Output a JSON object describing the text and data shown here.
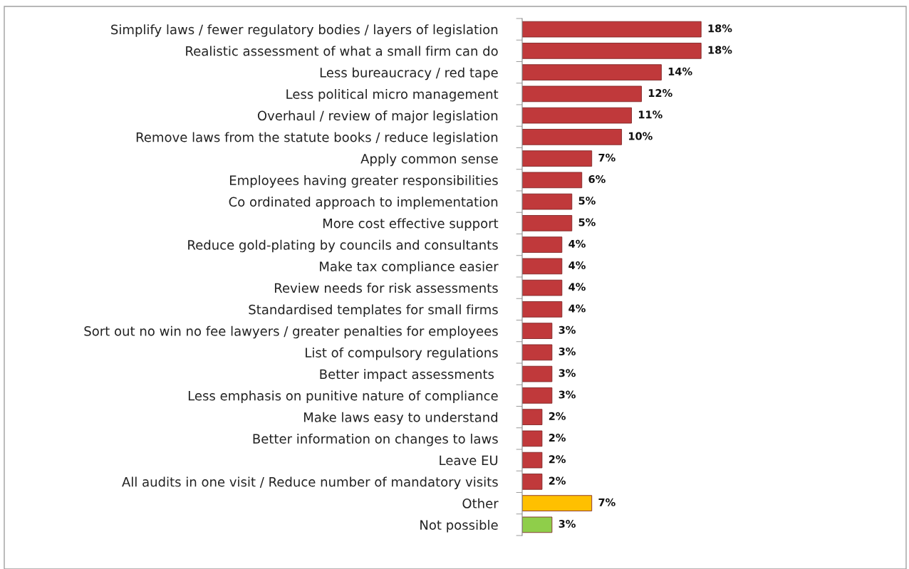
{
  "chart_data": {
    "type": "bar",
    "orientation": "horizontal",
    "categories": [
      "Simplify laws / fewer regulatory bodies / layers of legislation",
      "Realistic assessment of what a small firm can do",
      "Less bureaucracy / red tape",
      "Less political micro management",
      "Overhaul / review of major legislation",
      "Remove laws from the statute books / reduce legislation",
      "Apply common sense",
      "Employees having greater responsibilities",
      "Co ordinated approach to implementation",
      "More cost effective support",
      "Reduce gold-plating by councils and consultants",
      "Make tax compliance easier",
      "Review needs for risk assessments",
      "Standardised templates for small firms",
      "Sort out no win no fee lawyers / greater penalties for employees",
      "List of compulsory regulations",
      "Better impact assessments ",
      "Less emphasis on punitive nature of compliance",
      "Make laws easy to understand",
      "Better information on changes to laws",
      "Leave EU",
      "All audits in one visit / Reduce number of mandatory visits",
      "Other",
      "Not possible"
    ],
    "values": [
      18,
      18,
      14,
      12,
      11,
      10,
      7,
      6,
      5,
      5,
      4,
      4,
      4,
      4,
      3,
      3,
      3,
      3,
      2,
      2,
      2,
      2,
      7,
      3
    ],
    "value_labels": [
      "18%",
      "18%",
      "14%",
      "12%",
      "11%",
      "10%",
      "7%",
      "6%",
      "5%",
      "5%",
      "4%",
      "4%",
      "4%",
      "4%",
      "3%",
      "3%",
      "3%",
      "3%",
      "2%",
      "2%",
      "2%",
      "2%",
      "7%",
      "3%"
    ],
    "colors": [
      "#c0393b",
      "#c0393b",
      "#c0393b",
      "#c0393b",
      "#c0393b",
      "#c0393b",
      "#c0393b",
      "#c0393b",
      "#c0393b",
      "#c0393b",
      "#c0393b",
      "#c0393b",
      "#c0393b",
      "#c0393b",
      "#c0393b",
      "#c0393b",
      "#c0393b",
      "#c0393b",
      "#c0393b",
      "#c0393b",
      "#c0393b",
      "#c0393b",
      "#ffc000",
      "#8fce4a"
    ],
    "grid": false,
    "legend": false
  }
}
